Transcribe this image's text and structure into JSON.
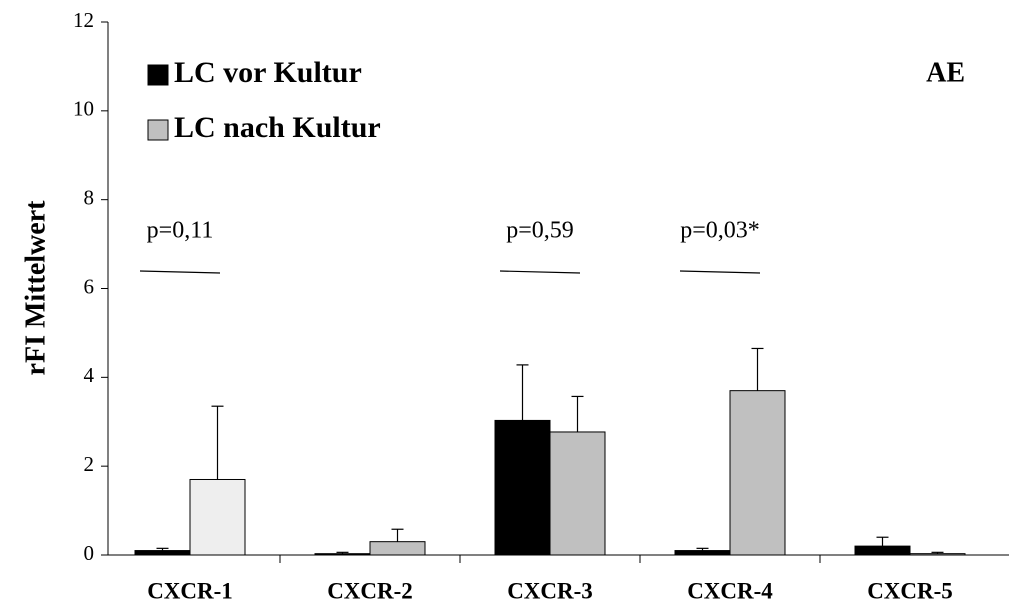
{
  "chart_data": {
    "type": "bar",
    "y_label": "rFI Mittelwert",
    "panel_label": "AE",
    "categories": [
      "CXCR-1",
      "CXCR-2",
      "CXCR-3",
      "CXCR-4",
      "CXCR-5"
    ],
    "series": [
      {
        "name": "LC vor Kultur",
        "color": "#000000",
        "values": [
          0.1,
          0.03,
          3.03,
          0.1,
          0.2
        ],
        "errors": [
          0.05,
          0.03,
          1.25,
          0.05,
          0.2
        ]
      },
      {
        "name": "LC nach Kultur",
        "color": "#c0c0c0",
        "colors": [
          "#eeeeee",
          "#c0c0c0",
          "#c0c0c0",
          "#c0c0c0",
          "#c0c0c0"
        ],
        "values": [
          1.7,
          0.3,
          2.77,
          3.7,
          0.03
        ],
        "errors": [
          1.65,
          0.28,
          0.8,
          0.95,
          0.03
        ]
      }
    ],
    "annotations": [
      "p=0,11",
      null,
      "p=0,59",
      "p=0,03*",
      null
    ],
    "ylim": [
      0,
      12
    ],
    "yticks": [
      0,
      2,
      4,
      6,
      8,
      10,
      12
    ],
    "grid": false
  }
}
